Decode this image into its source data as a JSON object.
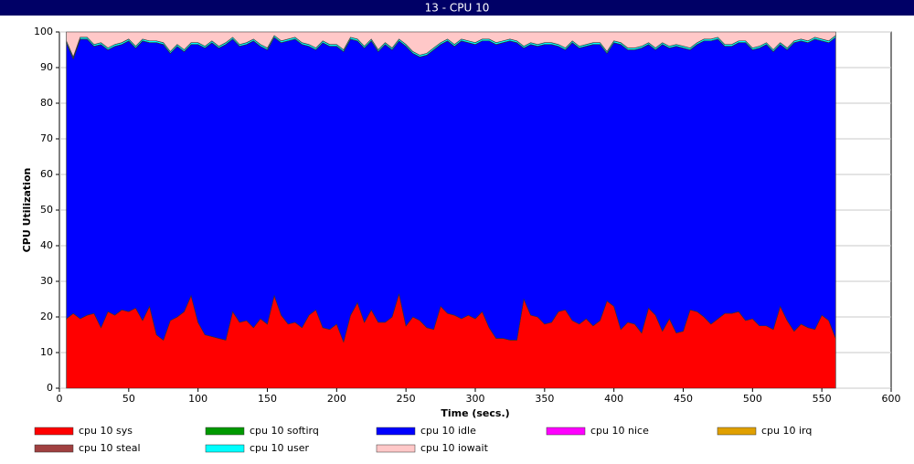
{
  "chart_data": {
    "type": "stacked_area",
    "title": "13 - CPU 10",
    "xlabel": "Time (secs.)",
    "ylabel": "CPU Utilization",
    "xlim": [
      0,
      600
    ],
    "xticks": [
      0,
      50,
      100,
      150,
      200,
      250,
      300,
      350,
      400,
      450,
      500,
      550,
      600
    ],
    "ylim": [
      0,
      100
    ],
    "yticks": [
      0,
      10,
      20,
      30,
      40,
      50,
      60,
      70,
      80,
      90,
      100
    ],
    "grid": true,
    "x": [
      5,
      10,
      15,
      20,
      25,
      30,
      35,
      40,
      45,
      50,
      55,
      60,
      65,
      70,
      75,
      80,
      85,
      90,
      95,
      100,
      105,
      110,
      115,
      120,
      125,
      130,
      135,
      140,
      145,
      150,
      155,
      160,
      165,
      170,
      175,
      180,
      185,
      190,
      195,
      200,
      205,
      210,
      215,
      220,
      225,
      230,
      235,
      240,
      245,
      250,
      255,
      260,
      265,
      270,
      275,
      280,
      285,
      290,
      295,
      300,
      305,
      310,
      315,
      320,
      325,
      330,
      335,
      340,
      345,
      350,
      355,
      360,
      365,
      370,
      375,
      380,
      385,
      390,
      395,
      400,
      405,
      410,
      415,
      420,
      425,
      430,
      435,
      440,
      445,
      450,
      455,
      460,
      465,
      470,
      475,
      480,
      485,
      490,
      495,
      500,
      505,
      510,
      515,
      520,
      525,
      530,
      535,
      540,
      545,
      550,
      555,
      560
    ],
    "series": [
      {
        "name": "cpu 10 sys",
        "color": "#ff0000",
        "values": [
          19.5,
          21,
          19.5,
          20.5,
          21,
          17,
          21.5,
          20.5,
          22,
          21.5,
          22.5,
          19,
          23,
          15,
          13.5,
          19,
          20,
          21.5,
          26,
          18.5,
          15,
          14.5,
          14,
          13.5,
          21.5,
          18.5,
          19,
          17,
          19.5,
          18,
          26,
          20.5,
          18,
          18.5,
          17,
          20.5,
          22,
          17,
          16.5,
          18,
          13,
          20.5,
          24,
          18.5,
          22,
          18.5,
          18.5,
          20,
          26.5,
          17.5,
          20,
          19,
          17,
          16.5,
          23,
          21,
          20.5,
          19.5,
          20.5,
          19.5,
          21.5,
          17,
          14,
          14,
          13.5,
          13.5,
          25,
          20.5,
          20,
          18,
          18.5,
          21.5,
          22,
          19,
          18,
          19.5,
          17.5,
          19,
          24.5,
          23,
          16.5,
          18.5,
          18,
          15.5,
          22.5,
          20.5,
          16,
          19.5,
          15.5,
          16,
          22,
          21.5,
          20,
          18,
          19.5,
          21,
          21,
          21.5,
          19,
          19.5,
          17.5,
          17.5,
          16.5,
          23,
          19,
          16,
          18,
          17,
          16.5,
          20.5,
          19,
          14
        ]
      },
      {
        "name": "cpu 10 softirq",
        "color": "#009900",
        "values": [
          0,
          0,
          0,
          0,
          0,
          0,
          0,
          0,
          0,
          0,
          0,
          0,
          0,
          0,
          0,
          0,
          0,
          0,
          0,
          0,
          0,
          0,
          0,
          0,
          0,
          0,
          0,
          0,
          0,
          0,
          0,
          0,
          0,
          0,
          0,
          0,
          0,
          0,
          0,
          0,
          0,
          0,
          0,
          0,
          0,
          0,
          0,
          0,
          0,
          0,
          0,
          0,
          0,
          0,
          0,
          0,
          0,
          0,
          0,
          0,
          0,
          0,
          0,
          0,
          0,
          0,
          0,
          0,
          0,
          0,
          0,
          0,
          0,
          0,
          0,
          0,
          0,
          0,
          0,
          0,
          0,
          0,
          0,
          0,
          0,
          0,
          0,
          0,
          0,
          0,
          0,
          0,
          0,
          0,
          0,
          0,
          0,
          0,
          0,
          0,
          0,
          0,
          0,
          0,
          0,
          0,
          0,
          0,
          0,
          0,
          0,
          0
        ]
      },
      {
        "name": "cpu 10 idle",
        "color": "#0000ff",
        "values": [
          77.5,
          71.5,
          78.5,
          77.5,
          75,
          79.5,
          73.5,
          75.5,
          74.5,
          76,
          73,
          78.5,
          74,
          82,
          83,
          75,
          76,
          73,
          70.5,
          78,
          80.5,
          82.5,
          81.5,
          83,
          76.5,
          77.5,
          77.5,
          80.5,
          76.5,
          77,
          72.5,
          76.5,
          79.5,
          79.5,
          79.5,
          75.5,
          73,
          80,
          79.5,
          78,
          81.5,
          77.5,
          73.5,
          77,
          75.5,
          76,
          78,
          75,
          71,
          78.5,
          74,
          74,
          76.5,
          78.5,
          73.5,
          76.5,
          75.5,
          78,
          76.5,
          77,
          76,
          80.5,
          82.5,
          83,
          84,
          83.5,
          70.5,
          76,
          76,
          78.5,
          78,
          74.5,
          73,
          78,
          77.5,
          76.5,
          79,
          77.5,
          69.5,
          74,
          80,
          76.5,
          77,
          80,
          74,
          74.5,
          80.5,
          76,
          80.5,
          79.5,
          73,
          75,
          77.5,
          79.5,
          78.5,
          75,
          75,
          75.5,
          78,
          75.5,
          78,
          79,
          78,
          73.5,
          76,
          81,
          79.5,
          80,
          81.5,
          77,
          78,
          84.5
        ]
      },
      {
        "name": "cpu 10 nice",
        "color": "#ff00ff",
        "values": [
          0,
          0,
          0,
          0,
          0,
          0,
          0,
          0,
          0,
          0,
          0,
          0,
          0,
          0,
          0,
          0,
          0,
          0,
          0,
          0,
          0,
          0,
          0,
          0,
          0,
          0,
          0,
          0,
          0,
          0,
          0,
          0,
          0,
          0,
          0,
          0,
          0,
          0,
          0,
          0,
          0,
          0,
          0,
          0,
          0,
          0,
          0,
          0,
          0,
          0,
          0,
          0,
          0,
          0,
          0,
          0,
          0,
          0,
          0,
          0,
          0,
          0,
          0,
          0,
          0,
          0,
          0,
          0,
          0,
          0,
          0,
          0,
          0,
          0,
          0,
          0,
          0,
          0,
          0,
          0,
          0,
          0,
          0,
          0,
          0,
          0,
          0,
          0,
          0,
          0,
          0,
          0,
          0,
          0,
          0,
          0,
          0,
          0,
          0,
          0,
          0,
          0,
          0,
          0,
          0,
          0,
          0,
          0,
          0,
          0,
          0,
          0
        ]
      },
      {
        "name": "cpu 10 irq",
        "color": "#e0a000",
        "values": [
          0,
          0,
          0,
          0,
          0,
          0,
          0,
          0,
          0,
          0,
          0,
          0,
          0,
          0,
          0,
          0,
          0,
          0,
          0,
          0,
          0,
          0,
          0,
          0,
          0,
          0,
          0,
          0,
          0,
          0,
          0,
          0,
          0,
          0,
          0,
          0,
          0,
          0,
          0,
          0,
          0,
          0,
          0,
          0,
          0,
          0,
          0,
          0,
          0,
          0,
          0,
          0,
          0,
          0,
          0,
          0,
          0,
          0,
          0,
          0,
          0,
          0,
          0,
          0,
          0,
          0,
          0,
          0,
          0,
          0,
          0,
          0,
          0,
          0,
          0,
          0,
          0,
          0,
          0,
          0,
          0,
          0,
          0,
          0,
          0,
          0,
          0,
          0,
          0,
          0,
          0,
          0,
          0,
          0,
          0,
          0,
          0,
          0,
          0,
          0,
          0,
          0,
          0,
          0,
          0,
          0,
          0,
          0,
          0,
          0,
          0,
          0
        ]
      },
      {
        "name": "cpu 10 steal",
        "color": "#a04040",
        "values": [
          0,
          0,
          0,
          0,
          0,
          0,
          0,
          0,
          0,
          0,
          0,
          0,
          0,
          0,
          0,
          0,
          0,
          0,
          0,
          0,
          0,
          0,
          0,
          0,
          0,
          0,
          0,
          0,
          0,
          0,
          0,
          0,
          0,
          0,
          0,
          0,
          0,
          0,
          0,
          0,
          0,
          0,
          0,
          0,
          0,
          0,
          0,
          0,
          0,
          0,
          0,
          0,
          0,
          0,
          0,
          0,
          0,
          0,
          0,
          0,
          0,
          0,
          0,
          0,
          0,
          0,
          0,
          0,
          0,
          0,
          0,
          0,
          0,
          0,
          0,
          0,
          0,
          0,
          0,
          0,
          0,
          0,
          0,
          0,
          0,
          0,
          0,
          0,
          0,
          0,
          0,
          0,
          0,
          0,
          0,
          0,
          0,
          0,
          0,
          0,
          0,
          0,
          0,
          0,
          0,
          0,
          0,
          0,
          0,
          0,
          0,
          0
        ]
      },
      {
        "name": "cpu 10 user",
        "color": "#00ffff",
        "values": [
          0.5,
          0.5,
          0.5,
          0.5,
          0.5,
          0.5,
          0.5,
          0.5,
          0.5,
          0.5,
          0.5,
          0.5,
          0.5,
          0.5,
          0.5,
          0.5,
          0.5,
          0.5,
          0.5,
          0.5,
          0.5,
          0.5,
          0.5,
          0.5,
          0.5,
          0.5,
          0.5,
          0.5,
          0.5,
          0.5,
          0.5,
          0.5,
          0.5,
          0.5,
          0.5,
          0.5,
          0.5,
          0.5,
          0.5,
          0.5,
          0.5,
          0.5,
          0.5,
          0.5,
          0.5,
          0.5,
          0.5,
          0.5,
          0.5,
          0.5,
          0.5,
          0.5,
          0.5,
          0.5,
          0.5,
          0.5,
          0.5,
          0.5,
          0.5,
          0.5,
          0.5,
          0.5,
          0.5,
          0.5,
          0.5,
          0.5,
          0.5,
          0.5,
          0.5,
          0.5,
          0.5,
          0.5,
          0.5,
          0.5,
          0.5,
          0.5,
          0.5,
          0.5,
          0.5,
          0.5,
          0.5,
          0.5,
          0.5,
          0.5,
          0.5,
          0.5,
          0.5,
          0.5,
          0.5,
          0.5,
          0.5,
          0.5,
          0.5,
          0.5,
          0.5,
          0.5,
          0.5,
          0.5,
          0.5,
          0.5,
          0.5,
          0.5,
          0.5,
          0.5,
          0.5,
          0.5,
          0.5,
          0.5,
          0.5,
          0.5,
          0.5,
          0.5
        ]
      },
      {
        "name": "cpu 10 iowait",
        "color": "#ffc8c8",
        "values": [
          2.5,
          7,
          1.5,
          1.5,
          3.5,
          3,
          4.5,
          3.5,
          3,
          2,
          4,
          2,
          2.5,
          2.5,
          3,
          5.5,
          3.5,
          5,
          3,
          3,
          4,
          2.5,
          4,
          3,
          1.5,
          3.5,
          3,
          2,
          3.5,
          4.5,
          1,
          2.5,
          2,
          1.5,
          3,
          3.5,
          4.5,
          2.5,
          3.5,
          3.5,
          5,
          1.5,
          2,
          4,
          2,
          5,
          3,
          4.5,
          2,
          3.5,
          5.5,
          6.5,
          6,
          4.5,
          3,
          2,
          3.5,
          2,
          2.5,
          3,
          2,
          2,
          3,
          2.5,
          2,
          2.5,
          4,
          3,
          3.5,
          3,
          3,
          3.5,
          4.5,
          2.5,
          4,
          3.5,
          3,
          3,
          5.5,
          2.5,
          3,
          4.5,
          4.5,
          4,
          3,
          4.5,
          3,
          4,
          3.5,
          4,
          4.5,
          3,
          2,
          2,
          1.5,
          3.5,
          3.5,
          2.5,
          2.5,
          4.5,
          4,
          3,
          5,
          3,
          4.5,
          2.5,
          2,
          2.5,
          1.5,
          2,
          2.5,
          1
        ]
      }
    ]
  }
}
